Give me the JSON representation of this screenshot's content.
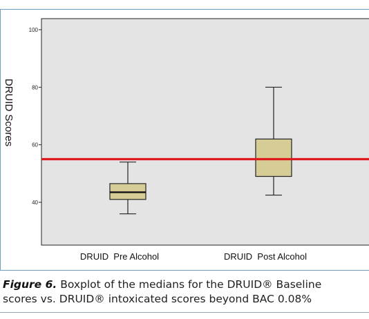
{
  "chart_data": {
    "type": "boxplot",
    "ylabel": "DRUID Scores",
    "xlabel": "",
    "ylim": [
      30,
      102
    ],
    "yticks": [
      40,
      60,
      80,
      100
    ],
    "grid": false,
    "categories": [
      "DRUID  Pre Alcohol",
      "DRUID  Post Alcohol"
    ],
    "boxes": [
      {
        "category": "DRUID  Pre Alcohol",
        "min": 36,
        "q1": 41,
        "median": 43.5,
        "q3": 46.5,
        "max": 54
      },
      {
        "category": "DRUID  Post Alcohol",
        "min": 42.5,
        "q1": 49,
        "median": 55,
        "q3": 62,
        "max": 80
      }
    ],
    "reference_line": {
      "value": 55,
      "color": "#e0191e"
    },
    "colors": {
      "box_fill": "#d5cc96",
      "plot_background": "#e4e4e4",
      "frame": "#6f9fc0"
    }
  },
  "caption": {
    "label": "Figure 6.",
    "line1_rest": " Boxplot of the medians for the DRUID® Baseline",
    "line2": "scores vs. DRUID® intoxicated scores beyond BAC 0.08%"
  }
}
